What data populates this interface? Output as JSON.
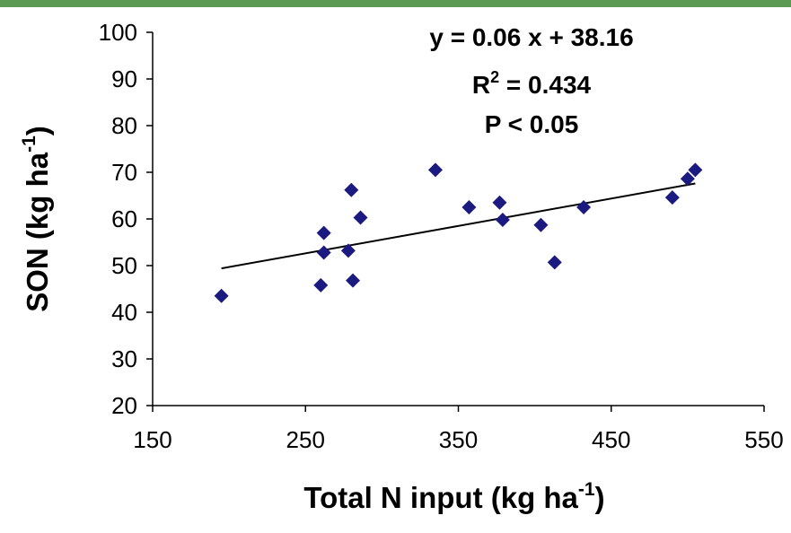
{
  "colors": {
    "top_bar": "#5a9a52",
    "marker": "#1a1a80",
    "axis": "#000000",
    "trendline": "#000000"
  },
  "chart_data": {
    "type": "scatter",
    "title": "",
    "xlabel": {
      "main": "Total N input (kg ha",
      "sup": "-1",
      "close": ")"
    },
    "ylabel": {
      "main": "SON (kg ha",
      "sup": "-1",
      "close": ")"
    },
    "xlim": [
      150,
      550
    ],
    "ylim": [
      20,
      100
    ],
    "x_ticks": [
      150,
      250,
      350,
      450,
      550
    ],
    "y_ticks": [
      20,
      30,
      40,
      50,
      60,
      70,
      80,
      90,
      100
    ],
    "grid": false,
    "marker": "diamond",
    "points": [
      {
        "x": 195,
        "y": 43.5
      },
      {
        "x": 260,
        "y": 45.8
      },
      {
        "x": 262,
        "y": 57.0
      },
      {
        "x": 262,
        "y": 52.8
      },
      {
        "x": 278,
        "y": 53.2
      },
      {
        "x": 280,
        "y": 66.2
      },
      {
        "x": 281,
        "y": 46.8
      },
      {
        "x": 286,
        "y": 60.3
      },
      {
        "x": 335,
        "y": 70.5
      },
      {
        "x": 357,
        "y": 62.5
      },
      {
        "x": 377,
        "y": 63.5
      },
      {
        "x": 379,
        "y": 59.8
      },
      {
        "x": 404,
        "y": 58.7
      },
      {
        "x": 413,
        "y": 50.7
      },
      {
        "x": 432,
        "y": 62.5
      },
      {
        "x": 490,
        "y": 64.6
      },
      {
        "x": 500,
        "y": 68.6
      },
      {
        "x": 505,
        "y": 70.5
      }
    ],
    "trendline": {
      "x_range": [
        195,
        505
      ],
      "y_range": [
        49.4,
        67.6
      ]
    },
    "annotations": {
      "equation": "y = 0.06 x + 38.16",
      "r2_prefix": "R",
      "r2_sup": "2",
      "r2_value": " = 0.434",
      "p_value": "P < 0.05"
    }
  }
}
